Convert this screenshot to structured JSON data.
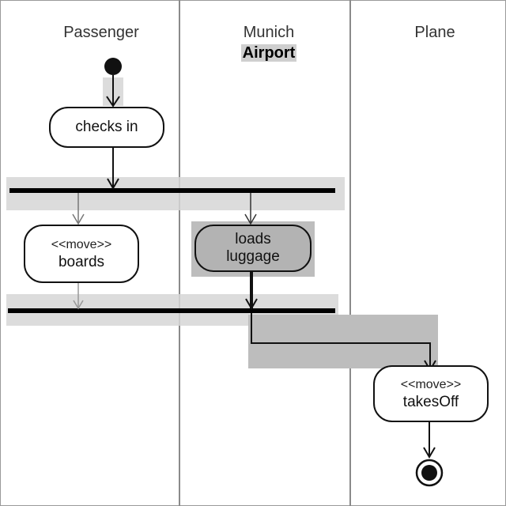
{
  "lanes": {
    "passenger": "Passenger",
    "airport_line1": "Munich",
    "airport_line2": "Airport",
    "plane": "Plane"
  },
  "nodes": {
    "checks_in": {
      "label": "checks in"
    },
    "boards": {
      "stereotype": "<<move>>",
      "label": "boards"
    },
    "loads_luggage": {
      "line1": "loads",
      "line2": "luggage"
    },
    "takes_off": {
      "stereotype": "<<move>>",
      "label": "takesOff"
    }
  },
  "colors": {
    "highlight": "#d6d6d6",
    "highlight_dark": "#bdbdbd",
    "line": "#111111"
  }
}
